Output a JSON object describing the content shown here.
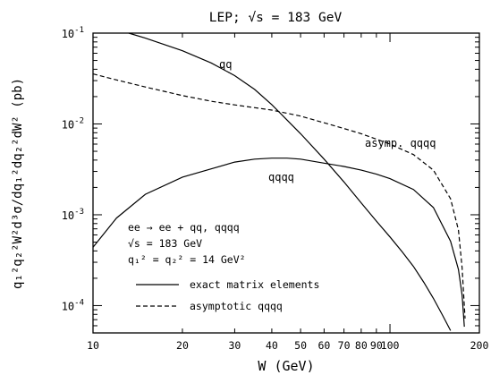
{
  "chart_data": {
    "type": "line",
    "title": "LEP; √s = 183 GeV",
    "xlabel": "W (GeV)",
    "ylabel": "q₁²q₂²W²d³σ/dq₁²dq₂²dW² (pb)",
    "xscale": "log",
    "yscale": "log",
    "xlim": [
      10,
      200
    ],
    "ylim": [
      5e-05,
      0.1
    ],
    "x_ticks": [
      "10",
      "20",
      "30",
      "40",
      "50",
      "60",
      "70",
      "80",
      "90",
      "100",
      "200"
    ],
    "y_ticks": [
      {
        "base": "10",
        "exp": "-4",
        "value": 0.0001
      },
      {
        "base": "10",
        "exp": "-3",
        "value": 0.001
      },
      {
        "base": "10",
        "exp": "-2",
        "value": 0.01
      },
      {
        "base": "10",
        "exp": "-1",
        "value": 0.1
      }
    ],
    "series": [
      {
        "name": "qq",
        "style": "solid",
        "points": [
          [
            13.2,
            0.1
          ],
          [
            15,
            0.088
          ],
          [
            20,
            0.064
          ],
          [
            25,
            0.047
          ],
          [
            30,
            0.034
          ],
          [
            35,
            0.024
          ],
          [
            40,
            0.0163
          ],
          [
            50,
            0.0078
          ],
          [
            60,
            0.0041
          ],
          [
            70,
            0.0023
          ],
          [
            80,
            0.00135
          ],
          [
            90,
            0.00085
          ],
          [
            100,
            0.00057
          ],
          [
            110,
            0.00039
          ],
          [
            120,
            0.00027
          ],
          [
            130,
            0.00018
          ],
          [
            140,
            0.00012
          ],
          [
            150,
            7.95e-05
          ],
          [
            160,
            5.3e-05
          ]
        ]
      },
      {
        "name": "qqqq",
        "style": "solid",
        "points": [
          [
            10,
            0.00044
          ],
          [
            12,
            0.00092
          ],
          [
            15,
            0.00168
          ],
          [
            20,
            0.0026
          ],
          [
            25,
            0.0032
          ],
          [
            30,
            0.0038
          ],
          [
            35,
            0.0041
          ],
          [
            40,
            0.0042
          ],
          [
            45,
            0.0042
          ],
          [
            50,
            0.0041
          ],
          [
            60,
            0.0037
          ],
          [
            70,
            0.0034
          ],
          [
            80,
            0.0031
          ],
          [
            90,
            0.0028
          ],
          [
            100,
            0.0025
          ],
          [
            120,
            0.0019
          ],
          [
            140,
            0.0012
          ],
          [
            160,
            0.00051
          ],
          [
            170,
            0.00025
          ],
          [
            175,
            0.00013
          ],
          [
            178,
            5.85e-05
          ]
        ]
      },
      {
        "name": "asymptotic qqqq",
        "style": "dashed",
        "points": [
          [
            10,
            0.0355
          ],
          [
            12,
            0.0305
          ],
          [
            15,
            0.0255
          ],
          [
            20,
            0.0205
          ],
          [
            25,
            0.0178
          ],
          [
            30,
            0.0162
          ],
          [
            40,
            0.0142
          ],
          [
            50,
            0.0122
          ],
          [
            60,
            0.0103
          ],
          [
            70,
            0.0089
          ],
          [
            80,
            0.0078
          ],
          [
            90,
            0.0068
          ],
          [
            100,
            0.006
          ],
          [
            120,
            0.0046
          ],
          [
            140,
            0.0031
          ],
          [
            160,
            0.0015
          ],
          [
            170,
            0.00068
          ],
          [
            175,
            0.00026
          ],
          [
            179,
            7.2e-05
          ]
        ]
      }
    ],
    "annotations": [
      {
        "text": "qq",
        "x": 40,
        "y": 0.042
      },
      {
        "text": "qqqq",
        "x": 80,
        "y": 0.0023
      },
      {
        "text": "asymp. qqqq",
        "x": 90,
        "y": 0.006
      }
    ],
    "legend": {
      "placement": "bottom-left",
      "text_lines": [
        "ee → ee + qq, qqqq",
        "√s = 183 GeV",
        "q₁² = q₂² = 14 GeV²"
      ],
      "entries": [
        {
          "label": "exact matrix elements",
          "style": "solid"
        },
        {
          "label": "asymptotic qqqq",
          "style": "dashed"
        }
      ]
    },
    "grid": false
  }
}
